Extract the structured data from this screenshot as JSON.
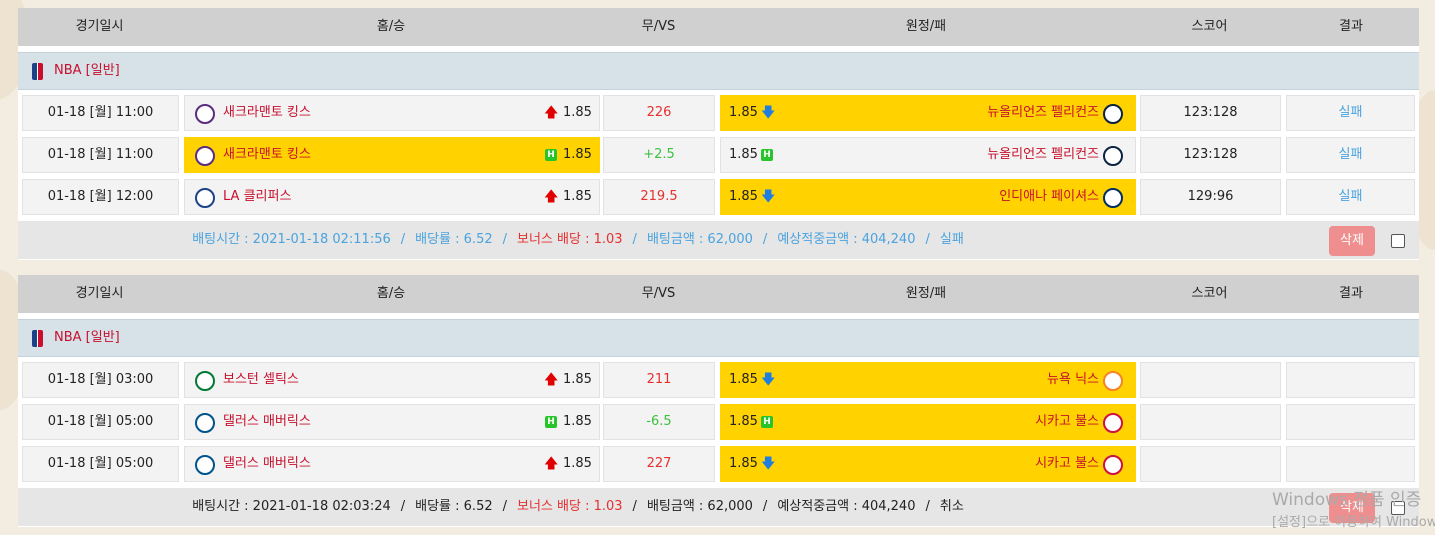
{
  "colors": {
    "accent_red": "#c8102e",
    "highlight": "#ffd200",
    "result_blue": "#4aa3df",
    "delete_pink": "#ef8e8e"
  },
  "header": {
    "date": "경기일시",
    "home": "홈/승",
    "draw": "무/VS",
    "away": "원정/패",
    "score": "스코어",
    "result": "결과"
  },
  "bets": [
    {
      "league": "NBA [일반]",
      "games": [
        {
          "datetime": "01-18 [월] 11:00",
          "home": "새크라맨토 킹스",
          "home_logo": "kings-logo-icon",
          "home_odds": "1.85",
          "home_mark": "up-arrow",
          "home_sel": false,
          "mid": "226",
          "mid_color": "red",
          "away_odds": "1.85",
          "away_mark": "down-arrow",
          "away": "뉴올리언즈 펠리컨즈",
          "away_logo": "pelicans-logo-icon",
          "away_sel": true,
          "score": "123:128",
          "result": "실패"
        },
        {
          "datetime": "01-18 [월] 11:00",
          "home": "새크라맨토 킹스",
          "home_logo": "kings-logo-icon",
          "home_odds": "1.85",
          "home_mark": "H",
          "home_sel": true,
          "mid": "+2.5",
          "mid_color": "green",
          "away_odds": "1.85",
          "away_mark": "H",
          "away": "뉴올리언즈 펠리컨즈",
          "away_logo": "pelicans-logo-icon",
          "away_sel": false,
          "score": "123:128",
          "result": "실패"
        },
        {
          "datetime": "01-18 [월] 12:00",
          "home": "LA 클리퍼스",
          "home_logo": "clippers-logo-icon",
          "home_odds": "1.85",
          "home_mark": "up-arrow",
          "home_sel": false,
          "mid": "219.5",
          "mid_color": "red",
          "away_odds": "1.85",
          "away_mark": "down-arrow",
          "away": "인디애나 페이셔스",
          "away_logo": "pacers-logo-icon",
          "away_sel": true,
          "score": "129:96",
          "result": "실패"
        }
      ],
      "footer": {
        "time": "배팅시간 : 2021-01-18 02:11:56",
        "rate": "배당률 : 6.52",
        "bonus": "보너스 배당 : 1.03",
        "amount": "배팅금액 : 62,000",
        "expected": "예상적중금액 : 404,240",
        "status": "실패",
        "sep": "/",
        "color": "#4aa3df"
      },
      "delete_label": "삭제"
    },
    {
      "league": "NBA [일반]",
      "games": [
        {
          "datetime": "01-18 [월] 03:00",
          "home": "보스턴 셀틱스",
          "home_logo": "celtics-logo-icon",
          "home_odds": "1.85",
          "home_mark": "up-arrow",
          "home_sel": false,
          "mid": "211",
          "mid_color": "red",
          "away_odds": "1.85",
          "away_mark": "down-arrow",
          "away": "뉴욕 닉스",
          "away_logo": "knicks-logo-icon",
          "away_sel": true,
          "score": "",
          "result": ""
        },
        {
          "datetime": "01-18 [월] 05:00",
          "home": "댈러스 매버릭스",
          "home_logo": "mavericks-logo-icon",
          "home_odds": "1.85",
          "home_mark": "H",
          "home_sel": false,
          "mid": "-6.5",
          "mid_color": "green",
          "away_odds": "1.85",
          "away_mark": "H",
          "away": "시카고 불스",
          "away_logo": "bulls-logo-icon",
          "away_sel": true,
          "score": "",
          "result": ""
        },
        {
          "datetime": "01-18 [월] 05:00",
          "home": "댈러스 매버릭스",
          "home_logo": "mavericks-logo-icon",
          "home_odds": "1.85",
          "home_mark": "up-arrow",
          "home_sel": false,
          "mid": "227",
          "mid_color": "red",
          "away_odds": "1.85",
          "away_mark": "down-arrow",
          "away": "시카고 불스",
          "away_logo": "bulls-logo-icon",
          "away_sel": true,
          "score": "",
          "result": ""
        }
      ],
      "footer": {
        "time": "배팅시간 : 2021-01-18 02:03:24",
        "rate": "배당률 : 6.52",
        "bonus": "보너스 배당 : 1.03",
        "amount": "배팅금액 : 62,000",
        "expected": "예상적중금액 : 404,240",
        "status": "취소",
        "sep": "/",
        "color": "#222222"
      },
      "delete_label": "삭제"
    }
  ],
  "watermark": {
    "line1": "Windows 정품 인증",
    "line2": "[설정]으로 이동하여 Windows"
  }
}
